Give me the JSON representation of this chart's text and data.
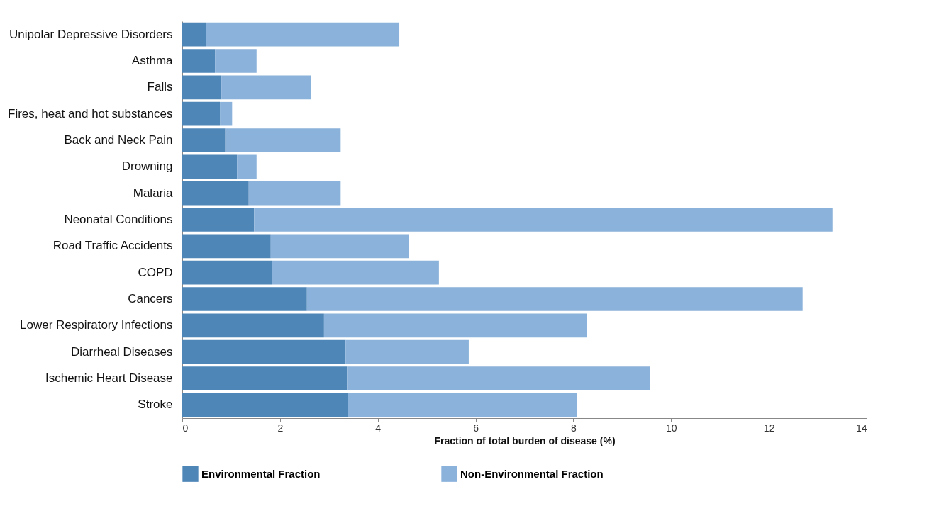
{
  "chart_data": {
    "type": "bar",
    "orientation": "horizontal",
    "stacked": true,
    "xlabel": "Fraction of total burden of disease (%)",
    "categories": [
      "Unipolar Depressive Disorders",
      "Asthma",
      "Falls",
      "Fires, heat and hot substances",
      "Back and Neck Pain",
      "Drowning",
      "Malaria",
      "Neonatal Conditions",
      "Road Traffic Accidents",
      "COPD",
      "Cancers",
      "Lower Respiratory Infections",
      "Diarrheal Diseases",
      "Ischemic Heart Disease",
      "Stroke"
    ],
    "series": [
      {
        "name": "Environmental Fraction",
        "color": "#4f86b8",
        "values": [
          0.49,
          0.67,
          0.8,
          0.77,
          0.88,
          1.12,
          1.36,
          1.47,
          1.81,
          1.84,
          2.55,
          2.9,
          3.34,
          3.37,
          3.39
        ]
      },
      {
        "name": "Non-Environmental Fraction",
        "color": "#8ab2da",
        "values": [
          3.95,
          0.85,
          1.83,
          0.25,
          2.36,
          0.4,
          1.88,
          11.83,
          2.83,
          3.41,
          10.14,
          5.37,
          2.52,
          6.2,
          4.68
        ]
      }
    ],
    "xlim": [
      0,
      14
    ],
    "xticks": [
      0,
      2,
      4,
      6,
      8,
      10,
      12,
      14
    ],
    "grid": false,
    "legend": "bottom"
  }
}
